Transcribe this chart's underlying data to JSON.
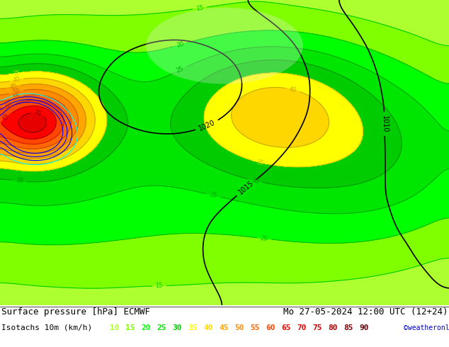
{
  "title_left": "Surface pressure [hPa] ECMWF",
  "title_right": "Mo 27-05-2024 12:00 UTC (12+24)",
  "subtitle_label": "Isotachs 10m (km/h)",
  "copyright": "©weatheronline.co.uk",
  "legend_values": [
    "10",
    "15",
    "20",
    "25",
    "30",
    "35",
    "40",
    "45",
    "50",
    "55",
    "60",
    "65",
    "70",
    "75",
    "80",
    "85",
    "90"
  ],
  "legend_colors": [
    "#adff2f",
    "#7fff00",
    "#00ff00",
    "#00e600",
    "#00cc00",
    "#ffff00",
    "#ffd700",
    "#ffa500",
    "#ff8c00",
    "#ff6600",
    "#ff4500",
    "#ff0000",
    "#e60000",
    "#cc0000",
    "#b30000",
    "#800000",
    "#660000"
  ],
  "bg_color": "#d4edaa",
  "map_bg1": "#c8e6a0",
  "map_bg2": "#e8f5d0",
  "border_color": "#000000",
  "text_color": "#000000",
  "font_size_title": 9,
  "font_size_legend": 8,
  "fig_width": 6.34,
  "fig_height": 4.9,
  "dpi": 100
}
